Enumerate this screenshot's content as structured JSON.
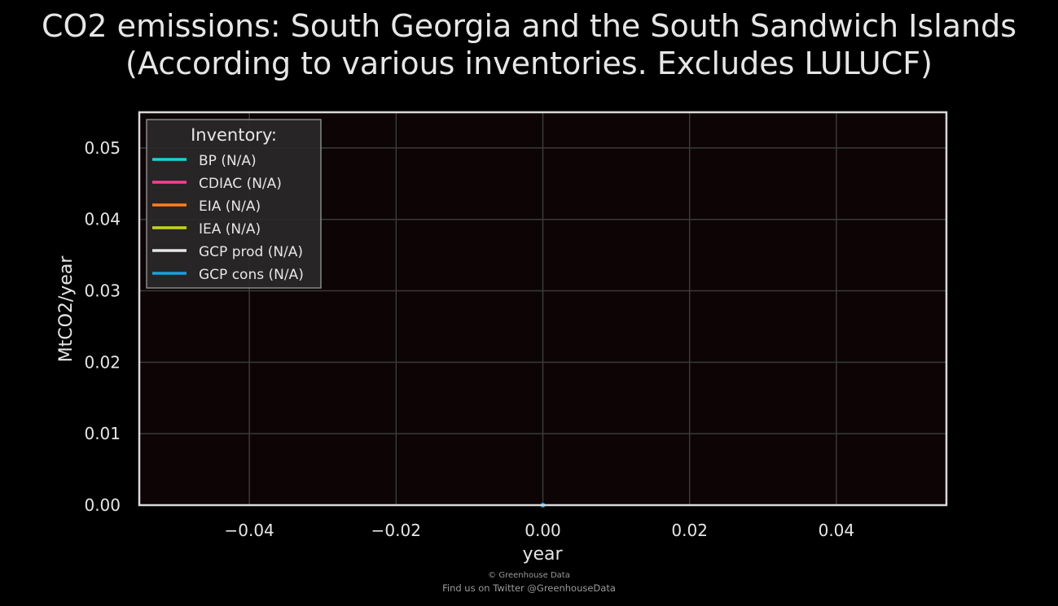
{
  "title": {
    "line1": "CO2 emissions: South Georgia and the South Sandwich Islands",
    "line2": "(According to various inventories. Excludes LULUCF)"
  },
  "chart_data": {
    "type": "line",
    "xlabel": "year",
    "ylabel": "MtCO2/year",
    "xlim": [
      -0.055,
      0.055
    ],
    "ylim": [
      0,
      0.055
    ],
    "xticks": [
      -0.04,
      -0.02,
      0.0,
      0.02,
      0.04
    ],
    "xtick_labels": [
      "−0.04",
      "−0.02",
      "0.00",
      "0.02",
      "0.04"
    ],
    "yticks": [
      0.0,
      0.01,
      0.02,
      0.03,
      0.04,
      0.05
    ],
    "ytick_labels": [
      "0.00",
      "0.01",
      "0.02",
      "0.03",
      "0.04",
      "0.05"
    ],
    "grid": true,
    "legend": {
      "title": "Inventory:",
      "placement": "top-left"
    },
    "series": [
      {
        "name": "BP (N/A)",
        "color": "#17d3d8",
        "x": [],
        "y": []
      },
      {
        "name": "CDIAC (N/A)",
        "color": "#ff3d96",
        "x": [],
        "y": []
      },
      {
        "name": "EIA (N/A)",
        "color": "#ff7f1e",
        "x": [],
        "y": []
      },
      {
        "name": "IEA (N/A)",
        "color": "#c3d619",
        "x": [],
        "y": []
      },
      {
        "name": "GCP prod (N/A)",
        "color": "#e6e6e6",
        "x": [],
        "y": []
      },
      {
        "name": "GCP cons (N/A)",
        "color": "#1aa0e0",
        "x": [
          0
        ],
        "y": [
          0
        ]
      }
    ]
  },
  "credit": {
    "line1": "© Greenhouse Data",
    "line2": "Find us on Twitter @GreenhouseData"
  },
  "colors": {
    "background": "#000000",
    "plot_background": "#0c0405",
    "grid": "#3a3a3a",
    "frame": "#d9d9d9",
    "text": "#e6e6e6",
    "legend_background": "#2a2828"
  }
}
